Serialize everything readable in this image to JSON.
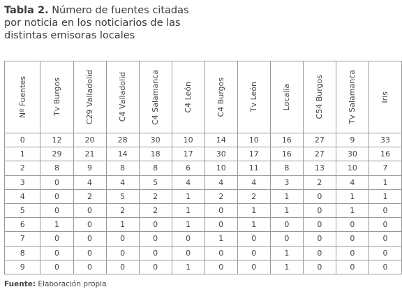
{
  "title": {
    "label": "Tabla 2.",
    "text": "Número de fuentes citadas por noticia en los noticiarios de las distintas emisoras locales"
  },
  "table": {
    "headers": [
      "Nº Fuentes",
      "Tv Burgos",
      "C29 Valladolid",
      "C4 Valladolid",
      "C4 Salamanca",
      "C4 León",
      "C4 Burgos",
      "Tv León",
      "Localia",
      "C54 Burgos",
      "Tv Salamanca",
      "Iris"
    ],
    "rows": [
      [
        0,
        12,
        20,
        28,
        30,
        10,
        14,
        10,
        16,
        27,
        9,
        33
      ],
      [
        1,
        29,
        21,
        14,
        18,
        17,
        30,
        17,
        16,
        27,
        30,
        16
      ],
      [
        2,
        8,
        9,
        8,
        8,
        6,
        10,
        11,
        8,
        13,
        10,
        7
      ],
      [
        3,
        0,
        4,
        4,
        5,
        4,
        4,
        4,
        3,
        2,
        4,
        1
      ],
      [
        4,
        0,
        2,
        5,
        2,
        1,
        2,
        2,
        1,
        0,
        1,
        1
      ],
      [
        5,
        0,
        0,
        2,
        2,
        1,
        0,
        1,
        1,
        0,
        1,
        0
      ],
      [
        6,
        1,
        0,
        1,
        0,
        1,
        0,
        1,
        0,
        0,
        0,
        0
      ],
      [
        7,
        0,
        0,
        0,
        0,
        0,
        1,
        0,
        0,
        0,
        0,
        0
      ],
      [
        8,
        0,
        0,
        0,
        0,
        0,
        0,
        0,
        1,
        0,
        0,
        0
      ],
      [
        9,
        0,
        0,
        0,
        0,
        1,
        0,
        0,
        1,
        0,
        0,
        0
      ]
    ]
  },
  "footer": {
    "label": "Fuente:",
    "text": "Elaboración propia"
  }
}
